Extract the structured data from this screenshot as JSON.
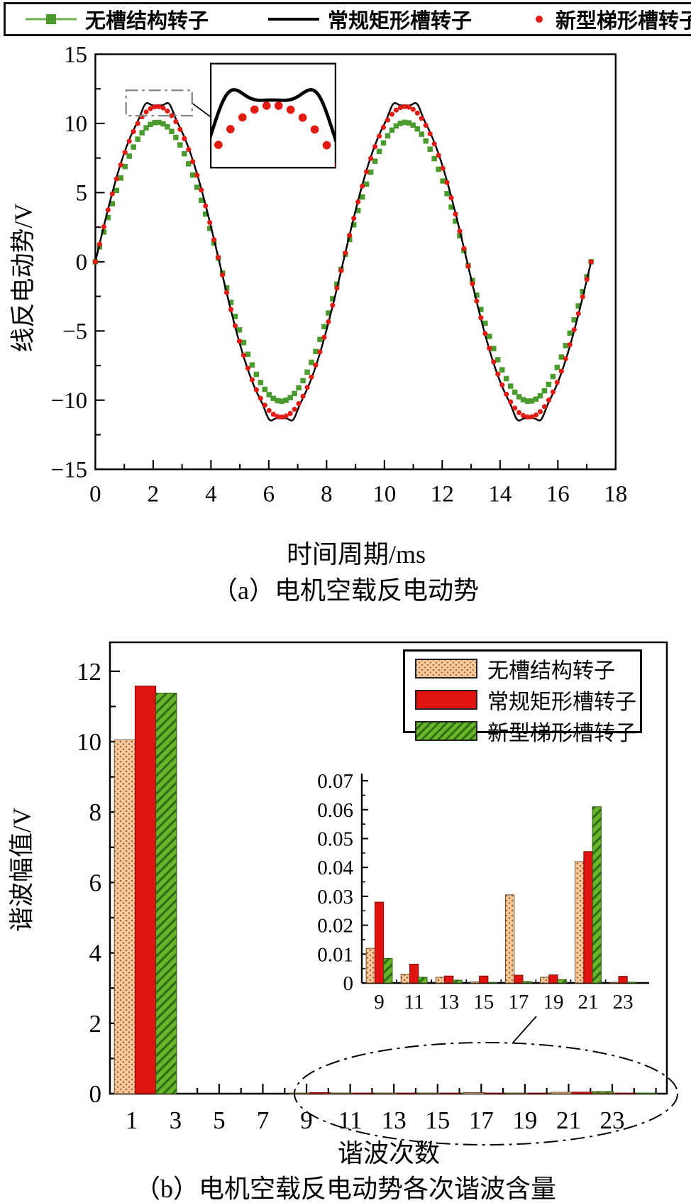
{
  "top_legend": {
    "items": [
      {
        "label": "无槽结构转子",
        "marker": "line-with-square",
        "color": "#4a9b2d"
      },
      {
        "label": "常规矩形槽转子",
        "marker": "solid-line",
        "color": "#000000"
      },
      {
        "label": "新型梯形槽转子",
        "marker": "dot",
        "color": "#e11b12"
      }
    ]
  },
  "colors": {
    "green_marker": "#4a9b2d",
    "green_line": "#6ab04c",
    "black": "#000000",
    "red": "#e11b12",
    "bar_tan_fill": "#f8cb9e",
    "bar_tan_dot": "#a8672f",
    "bar_red": "#e01310",
    "bar_green": "#6ab42c",
    "bar_green_hatch": "#2e6e14",
    "dash_gray": "#858585"
  },
  "chart_a": {
    "ylabel": "线反电动势/V",
    "xlabel": "时间周期/ms",
    "caption": "（a）电机空载反电动势"
  },
  "chart_b": {
    "ylabel": "谐波幅值/V",
    "xlabel": "谐波次数",
    "caption": "（b）电机空载反电动势各次谐波含量",
    "legend": [
      "无槽结构转子",
      "常规矩形槽转子",
      "新型梯形槽转子"
    ]
  },
  "chart_data": [
    {
      "type": "line",
      "title": "电机空载反电动势",
      "xlabel": "时间周期/ms",
      "ylabel": "线反电动势/V",
      "xlim": [
        0,
        18
      ],
      "ylim": [
        -15,
        15
      ],
      "xticks": [
        0,
        2,
        4,
        6,
        8,
        10,
        12,
        14,
        16,
        18
      ],
      "yticks": [
        -15,
        -10,
        -5,
        0,
        5,
        10,
        15
      ],
      "t_end_ms": 17.15,
      "period_ms": 8.575,
      "legend_position": "top-outside",
      "grid": false,
      "series": [
        {
          "name": "无槽结构转子",
          "waveform": "sine",
          "amplitude": 10.08,
          "style": "green-squares"
        },
        {
          "name": "常规矩形槽转子",
          "waveform": "flat_top_sine_twin_peaks",
          "a1": 12.12,
          "a3_cubic": 0.82,
          "hump": 0.55,
          "hump_offset_rad": 0.3,
          "hump_sigma_rad": 0.13,
          "peak": 11.45,
          "style": "black-line"
        },
        {
          "name": "新型梯形槽转子",
          "waveform": "rounded_sine",
          "a1": 11.9,
          "a3_cubic": 0.68,
          "peak": 11.22,
          "style": "red-dots"
        }
      ],
      "inset": {
        "t_window_ms": [
          1.58,
          2.72
        ],
        "v_window": [
          10.2,
          11.9
        ],
        "shows": [
          "常规矩形槽转子",
          "新型梯形槽转子"
        ]
      }
    },
    {
      "type": "bar",
      "title": "电机空载反电动势各次谐波含量",
      "xlabel": "谐波次数",
      "ylabel": "谐波幅值/V",
      "ylim": [
        0,
        12.8
      ],
      "yticks": [
        0,
        2,
        4,
        6,
        8,
        10,
        12
      ],
      "categories": [
        1,
        3,
        5,
        7,
        9,
        11,
        13,
        15,
        17,
        19,
        21,
        23
      ],
      "grid": false,
      "legend_position": "top-right-inside",
      "series": [
        {
          "name": "无槽结构转子",
          "pattern": "tan-dots",
          "values": [
            10.05,
            0,
            0,
            0,
            0.012,
            0.003,
            0.002,
            0.0004,
            0.0305,
            0.002,
            0.042,
            0.0002
          ]
        },
        {
          "name": "常规矩形槽转子",
          "pattern": "red-solid",
          "values": [
            11.58,
            0,
            0,
            0,
            0.028,
            0.0065,
            0.0024,
            0.0024,
            0.0027,
            0.0028,
            0.0455,
            0.0023
          ]
        },
        {
          "name": "新型梯形槽转子",
          "pattern": "green-hatch",
          "values": [
            11.38,
            0,
            0,
            0,
            0.0085,
            0.002,
            0.001,
            0.0002,
            0.0005,
            0.0012,
            0.061,
            0.0003
          ]
        }
      ],
      "inset": {
        "categories": [
          9,
          11,
          13,
          15,
          17,
          19,
          21,
          23
        ],
        "ylim": [
          0,
          0.072
        ],
        "yticks": [
          0,
          0.01,
          0.02,
          0.03,
          0.04,
          0.05,
          0.06,
          0.07
        ]
      }
    }
  ]
}
